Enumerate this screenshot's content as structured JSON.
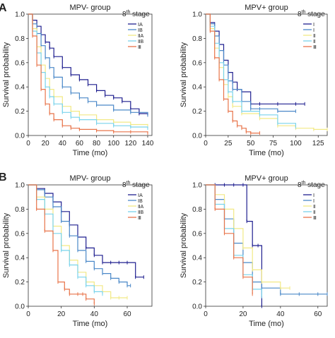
{
  "chart_data": [
    {
      "panel": "A",
      "type": "line",
      "title": "MPV- group",
      "xlabel": "Time (mo)",
      "ylabel": "Survival probability",
      "xlim": [
        0,
        145
      ],
      "ylim": [
        0,
        1.0
      ],
      "xticks": [
        "0",
        "20",
        "40",
        "60",
        "80",
        "100",
        "120",
        "140"
      ],
      "yticks": [
        "0.0",
        "0.2",
        "0.4",
        "0.6",
        "0.8",
        "1.0"
      ],
      "legend": {
        "title_base": "8",
        "title_sup": "th",
        "title_rest": " stage",
        "entries": [
          "ⅠA",
          "ⅠB",
          "ⅡA",
          "ⅡB",
          "Ⅲ"
        ],
        "position": "top-right"
      },
      "series": [
        {
          "name": "ⅠA",
          "color": "#1f1f8f",
          "x": [
            0,
            5,
            10,
            15,
            20,
            25,
            30,
            40,
            50,
            60,
            70,
            80,
            90,
            100,
            110,
            120,
            130,
            140
          ],
          "y": [
            1.0,
            0.95,
            0.9,
            0.83,
            0.77,
            0.72,
            0.65,
            0.56,
            0.5,
            0.46,
            0.42,
            0.37,
            0.33,
            0.31,
            0.28,
            0.22,
            0.18,
            0.17
          ]
        },
        {
          "name": "ⅠB",
          "color": "#4a88c8",
          "x": [
            0,
            5,
            10,
            15,
            20,
            25,
            30,
            40,
            50,
            60,
            70,
            80,
            100,
            120,
            140
          ],
          "y": [
            1.0,
            0.92,
            0.84,
            0.74,
            0.64,
            0.56,
            0.48,
            0.4,
            0.35,
            0.31,
            0.28,
            0.25,
            0.21,
            0.19,
            0.17
          ]
        },
        {
          "name": "ⅡA",
          "color": "#f2e985",
          "x": [
            0,
            5,
            10,
            15,
            20,
            25,
            30,
            40,
            50,
            60,
            80,
            100,
            120,
            140
          ],
          "y": [
            1.0,
            0.88,
            0.73,
            0.58,
            0.47,
            0.38,
            0.32,
            0.24,
            0.2,
            0.17,
            0.13,
            0.11,
            0.09,
            0.08
          ]
        },
        {
          "name": "ⅡB",
          "color": "#79d3ec",
          "x": [
            0,
            5,
            10,
            15,
            20,
            25,
            30,
            40,
            50,
            60,
            80,
            100,
            120,
            140
          ],
          "y": [
            1.0,
            0.86,
            0.68,
            0.52,
            0.4,
            0.32,
            0.26,
            0.19,
            0.15,
            0.13,
            0.1,
            0.08,
            0.07,
            0.06
          ]
        },
        {
          "name": "Ⅲ",
          "color": "#e8744a",
          "x": [
            0,
            5,
            10,
            15,
            20,
            25,
            30,
            40,
            50,
            60,
            80,
            100,
            120,
            140
          ],
          "y": [
            1.0,
            0.82,
            0.58,
            0.38,
            0.26,
            0.18,
            0.13,
            0.08,
            0.06,
            0.05,
            0.04,
            0.03,
            0.03,
            0.02
          ]
        }
      ]
    },
    {
      "panel": "A",
      "type": "line",
      "title": "MPV+ group",
      "xlabel": "Time (mo)",
      "ylabel": "Survival probability",
      "xlim": [
        0,
        135
      ],
      "ylim": [
        0,
        1.0
      ],
      "xticks": [
        "0",
        "25",
        "50",
        "75",
        "100",
        "125"
      ],
      "yticks": [
        "0.0",
        "0.2",
        "0.4",
        "0.6",
        "0.8",
        "1.0"
      ],
      "legend": {
        "title_base": "8",
        "title_sup": "th",
        "title_rest": " stage",
        "entries": [
          "Ⅰ",
          "Ⅰ",
          "Ⅱ",
          "Ⅱ",
          "Ⅲ"
        ],
        "position": "top-right"
      },
      "series": [
        {
          "name": "Ⅰ",
          "color": "#1f1f8f",
          "x": [
            0,
            5,
            10,
            15,
            20,
            25,
            30,
            35,
            40,
            50,
            60,
            80,
            100,
            110
          ],
          "y": [
            1.0,
            0.93,
            0.86,
            0.75,
            0.62,
            0.52,
            0.44,
            0.38,
            0.36,
            0.26,
            0.26,
            0.26,
            0.26,
            0.26
          ]
        },
        {
          "name": "Ⅰ",
          "color": "#4a88c8",
          "x": [
            0,
            5,
            10,
            15,
            20,
            25,
            30,
            40,
            50,
            60,
            80,
            100
          ],
          "y": [
            1.0,
            0.92,
            0.82,
            0.7,
            0.58,
            0.45,
            0.38,
            0.28,
            0.22,
            0.22,
            0.2,
            0.2
          ]
        },
        {
          "name": "Ⅱ",
          "color": "#f2e985",
          "x": [
            0,
            5,
            10,
            15,
            20,
            25,
            30,
            40,
            60,
            80,
            100,
            120,
            135
          ],
          "y": [
            1.0,
            0.88,
            0.72,
            0.56,
            0.42,
            0.32,
            0.24,
            0.18,
            0.14,
            0.08,
            0.06,
            0.05,
            0.05
          ]
        },
        {
          "name": "Ⅱ",
          "color": "#79d3ec",
          "x": [
            0,
            5,
            10,
            15,
            20,
            25,
            30,
            40,
            60,
            80,
            100
          ],
          "y": [
            1.0,
            0.9,
            0.76,
            0.6,
            0.46,
            0.36,
            0.28,
            0.2,
            0.17,
            0.1,
            0.07
          ]
        },
        {
          "name": "Ⅲ",
          "color": "#e8744a",
          "x": [
            0,
            5,
            10,
            15,
            20,
            25,
            30,
            35,
            40,
            45,
            50,
            60
          ],
          "y": [
            1.0,
            0.86,
            0.64,
            0.46,
            0.3,
            0.2,
            0.12,
            0.08,
            0.06,
            0.03,
            0.02,
            0.02
          ]
        }
      ]
    },
    {
      "panel": "B",
      "type": "line",
      "title": "MPV- group",
      "xlabel": "Time (mo)",
      "ylabel": "Survival probability",
      "xlim": [
        0,
        75
      ],
      "ylim": [
        0,
        1.0
      ],
      "xticks": [
        "0",
        "20",
        "40",
        "60"
      ],
      "yticks": [
        "0.0",
        "0.2",
        "0.4",
        "0.6",
        "0.8",
        "1.0"
      ],
      "legend": {
        "title_base": "8",
        "title_sup": "th",
        "title_rest": " stage",
        "entries": [
          "ⅠA",
          "ⅠB",
          "ⅡA",
          "ⅡB",
          "Ⅲ"
        ],
        "position": "top-right"
      },
      "series": [
        {
          "name": "ⅠA",
          "color": "#1f1f8f",
          "x": [
            0,
            5,
            10,
            15,
            20,
            25,
            30,
            35,
            40,
            45,
            50,
            55,
            60,
            65,
            70
          ],
          "y": [
            1.0,
            0.97,
            0.93,
            0.86,
            0.78,
            0.67,
            0.57,
            0.48,
            0.42,
            0.36,
            0.36,
            0.36,
            0.36,
            0.24,
            0.24
          ]
        },
        {
          "name": "ⅠB",
          "color": "#4a88c8",
          "x": [
            0,
            5,
            10,
            15,
            20,
            25,
            30,
            35,
            40,
            45,
            50,
            55,
            60,
            62
          ],
          "y": [
            1.0,
            0.96,
            0.9,
            0.82,
            0.7,
            0.58,
            0.46,
            0.37,
            0.31,
            0.27,
            0.23,
            0.2,
            0.17,
            0.17
          ]
        },
        {
          "name": "ⅡA",
          "color": "#f2e985",
          "x": [
            0,
            5,
            10,
            15,
            20,
            25,
            30,
            35,
            40,
            45,
            50,
            55,
            60
          ],
          "y": [
            1.0,
            0.9,
            0.8,
            0.66,
            0.5,
            0.38,
            0.28,
            0.2,
            0.17,
            0.12,
            0.07,
            0.07,
            0.07
          ]
        },
        {
          "name": "ⅡB",
          "color": "#79d3ec",
          "x": [
            0,
            5,
            10,
            15,
            20,
            25,
            30,
            35,
            40,
            45
          ],
          "y": [
            1.0,
            0.88,
            0.76,
            0.6,
            0.46,
            0.34,
            0.24,
            0.17,
            0.12,
            0.1
          ]
        },
        {
          "name": "Ⅲ",
          "color": "#e8744a",
          "x": [
            0,
            5,
            10,
            15,
            18,
            22,
            25,
            30,
            33,
            35,
            40
          ],
          "y": [
            1.0,
            0.8,
            0.62,
            0.46,
            0.2,
            0.14,
            0.1,
            0.1,
            0.1,
            0.06,
            0.02
          ]
        }
      ]
    },
    {
      "panel": "B",
      "type": "line",
      "title": "MPV+ group",
      "xlabel": "Time (mo)",
      "ylabel": "Survival probability",
      "xlim": [
        0,
        65
      ],
      "ylim": [
        0,
        1.0
      ],
      "xticks": [
        "0",
        "20",
        "40",
        "60"
      ],
      "yticks": [
        "0.0",
        "0.2",
        "0.4",
        "0.6",
        "0.8",
        "1.0"
      ],
      "legend": {
        "title_base": "8",
        "title_sup": "th",
        "title_rest": " stage",
        "entries": [
          "Ⅰ",
          "Ⅰ",
          "Ⅱ",
          "Ⅱ",
          "Ⅲ"
        ],
        "position": "top-right"
      },
      "series": [
        {
          "name": "Ⅰ",
          "color": "#1f1f8f",
          "x": [
            0,
            5,
            10,
            15,
            20,
            22,
            25,
            28,
            30
          ],
          "y": [
            1.0,
            1.0,
            1.0,
            1.0,
            1.0,
            0.7,
            0.5,
            0.5,
            0.0
          ]
        },
        {
          "name": "Ⅰ",
          "color": "#4a88c8",
          "x": [
            0,
            5,
            10,
            15,
            20,
            25,
            30,
            40,
            50,
            60,
            65
          ],
          "y": [
            1.0,
            0.88,
            0.72,
            0.52,
            0.36,
            0.2,
            0.15,
            0.1,
            0.1,
            0.1,
            0.1
          ]
        },
        {
          "name": "Ⅱ",
          "color": "#f2e985",
          "x": [
            0,
            5,
            10,
            15,
            20,
            25,
            30,
            40,
            45
          ],
          "y": [
            1.0,
            0.92,
            0.8,
            0.64,
            0.48,
            0.3,
            0.2,
            0.15,
            0.15
          ]
        },
        {
          "name": "Ⅱ",
          "color": "#79d3ec",
          "x": [
            0,
            5,
            10,
            15,
            20,
            25,
            30
          ],
          "y": [
            1.0,
            0.84,
            0.64,
            0.42,
            0.26,
            0.14,
            0.08
          ]
        },
        {
          "name": "Ⅲ",
          "color": "#e8744a",
          "x": [
            0,
            5,
            10,
            15,
            20,
            25
          ],
          "y": [
            1.0,
            0.8,
            0.6,
            0.4,
            0.24,
            0.1
          ]
        }
      ]
    }
  ],
  "panel_labels": [
    "A",
    "B"
  ]
}
